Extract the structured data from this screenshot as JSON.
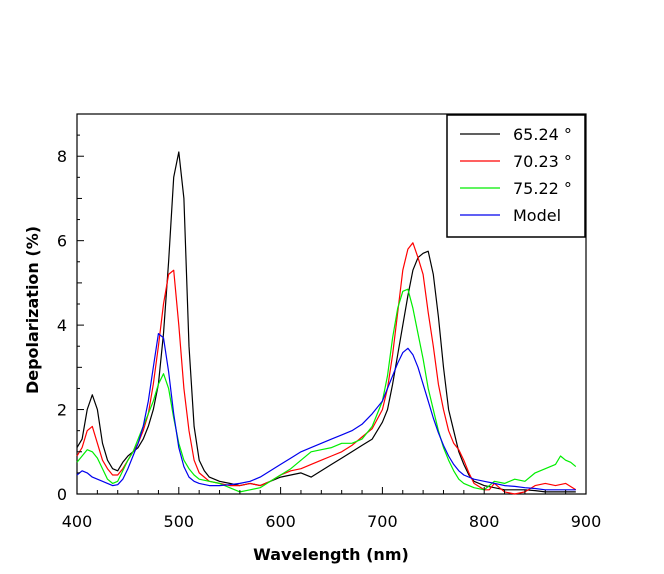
{
  "chart_data": {
    "type": "line",
    "title": "",
    "xlabel": "Wavelength (nm)",
    "ylabel": "Depolarization (%)",
    "xlim": [
      400,
      900
    ],
    "ylim": [
      0,
      9
    ],
    "xticks": [
      400,
      500,
      600,
      700,
      800,
      900
    ],
    "xtick_labels": [
      "400",
      "500",
      "600",
      "700",
      "800",
      "900"
    ],
    "yticks": [
      0,
      2,
      4,
      6,
      8
    ],
    "ytick_labels": [
      "0",
      "2",
      "4",
      "6",
      "8"
    ],
    "grid": false,
    "legend_position": "top-right",
    "series": [
      {
        "name": "65.24 °",
        "color": "#000000",
        "points": [
          [
            400,
            1.1
          ],
          [
            405,
            1.3
          ],
          [
            410,
            2.0
          ],
          [
            415,
            2.35
          ],
          [
            420,
            2.0
          ],
          [
            425,
            1.2
          ],
          [
            430,
            0.8
          ],
          [
            435,
            0.6
          ],
          [
            440,
            0.55
          ],
          [
            445,
            0.75
          ],
          [
            450,
            0.9
          ],
          [
            455,
            1.0
          ],
          [
            460,
            1.1
          ],
          [
            465,
            1.3
          ],
          [
            470,
            1.6
          ],
          [
            475,
            2.0
          ],
          [
            480,
            2.6
          ],
          [
            485,
            3.8
          ],
          [
            490,
            5.5
          ],
          [
            495,
            7.5
          ],
          [
            500,
            8.1
          ],
          [
            505,
            7.0
          ],
          [
            510,
            3.5
          ],
          [
            515,
            1.6
          ],
          [
            520,
            0.8
          ],
          [
            525,
            0.55
          ],
          [
            530,
            0.4
          ],
          [
            540,
            0.3
          ],
          [
            550,
            0.25
          ],
          [
            560,
            0.2
          ],
          [
            570,
            0.25
          ],
          [
            580,
            0.2
          ],
          [
            590,
            0.3
          ],
          [
            600,
            0.4
          ],
          [
            610,
            0.45
          ],
          [
            620,
            0.5
          ],
          [
            630,
            0.4
          ],
          [
            640,
            0.55
          ],
          [
            650,
            0.7
          ],
          [
            660,
            0.85
          ],
          [
            670,
            1.0
          ],
          [
            680,
            1.15
          ],
          [
            690,
            1.3
          ],
          [
            700,
            1.7
          ],
          [
            705,
            2.0
          ],
          [
            710,
            2.6
          ],
          [
            715,
            3.3
          ],
          [
            720,
            4.0
          ],
          [
            725,
            4.7
          ],
          [
            730,
            5.3
          ],
          [
            735,
            5.6
          ],
          [
            740,
            5.7
          ],
          [
            745,
            5.75
          ],
          [
            750,
            5.2
          ],
          [
            755,
            4.2
          ],
          [
            760,
            3.0
          ],
          [
            765,
            2.0
          ],
          [
            770,
            1.5
          ],
          [
            775,
            1.0
          ],
          [
            780,
            0.7
          ],
          [
            785,
            0.45
          ],
          [
            790,
            0.3
          ],
          [
            800,
            0.2
          ],
          [
            810,
            0.15
          ],
          [
            820,
            0.1
          ],
          [
            830,
            0.1
          ],
          [
            840,
            0.1
          ],
          [
            850,
            0.08
          ],
          [
            860,
            0.05
          ],
          [
            870,
            0.05
          ],
          [
            880,
            0.05
          ],
          [
            890,
            0.05
          ]
        ]
      },
      {
        "name": "70.23 °",
        "color": "#ff0000",
        "points": [
          [
            400,
            0.9
          ],
          [
            405,
            1.1
          ],
          [
            410,
            1.5
          ],
          [
            415,
            1.6
          ],
          [
            420,
            1.2
          ],
          [
            425,
            0.8
          ],
          [
            430,
            0.6
          ],
          [
            435,
            0.45
          ],
          [
            440,
            0.45
          ],
          [
            445,
            0.6
          ],
          [
            450,
            0.8
          ],
          [
            455,
            1.0
          ],
          [
            460,
            1.2
          ],
          [
            465,
            1.5
          ],
          [
            470,
            1.9
          ],
          [
            475,
            2.6
          ],
          [
            480,
            3.5
          ],
          [
            485,
            4.5
          ],
          [
            490,
            5.2
          ],
          [
            495,
            5.3
          ],
          [
            500,
            4.0
          ],
          [
            505,
            2.5
          ],
          [
            510,
            1.5
          ],
          [
            515,
            0.8
          ],
          [
            520,
            0.5
          ],
          [
            525,
            0.4
          ],
          [
            530,
            0.3
          ],
          [
            540,
            0.25
          ],
          [
            550,
            0.2
          ],
          [
            560,
            0.2
          ],
          [
            570,
            0.25
          ],
          [
            580,
            0.2
          ],
          [
            590,
            0.3
          ],
          [
            600,
            0.45
          ],
          [
            610,
            0.55
          ],
          [
            620,
            0.6
          ],
          [
            630,
            0.7
          ],
          [
            640,
            0.8
          ],
          [
            650,
            0.9
          ],
          [
            660,
            1.0
          ],
          [
            670,
            1.15
          ],
          [
            680,
            1.35
          ],
          [
            690,
            1.55
          ],
          [
            700,
            2.0
          ],
          [
            705,
            2.5
          ],
          [
            710,
            3.3
          ],
          [
            715,
            4.3
          ],
          [
            720,
            5.3
          ],
          [
            725,
            5.8
          ],
          [
            730,
            5.95
          ],
          [
            735,
            5.6
          ],
          [
            740,
            5.2
          ],
          [
            745,
            4.3
          ],
          [
            750,
            3.5
          ],
          [
            755,
            2.6
          ],
          [
            760,
            2.0
          ],
          [
            765,
            1.5
          ],
          [
            770,
            1.2
          ],
          [
            775,
            1.05
          ],
          [
            780,
            0.8
          ],
          [
            785,
            0.5
          ],
          [
            790,
            0.25
          ],
          [
            800,
            0.1
          ],
          [
            805,
            0.1
          ],
          [
            810,
            0.25
          ],
          [
            815,
            0.15
          ],
          [
            820,
            0.05
          ],
          [
            830,
            0.0
          ],
          [
            840,
            0.05
          ],
          [
            850,
            0.2
          ],
          [
            860,
            0.25
          ],
          [
            870,
            0.2
          ],
          [
            880,
            0.25
          ],
          [
            890,
            0.1
          ]
        ]
      },
      {
        "name": "75.22 °",
        "color": "#00ee00",
        "points": [
          [
            400,
            0.75
          ],
          [
            405,
            0.9
          ],
          [
            410,
            1.05
          ],
          [
            415,
            1.0
          ],
          [
            420,
            0.85
          ],
          [
            425,
            0.6
          ],
          [
            430,
            0.35
          ],
          [
            435,
            0.25
          ],
          [
            440,
            0.3
          ],
          [
            445,
            0.55
          ],
          [
            450,
            0.8
          ],
          [
            455,
            1.0
          ],
          [
            460,
            1.3
          ],
          [
            465,
            1.6
          ],
          [
            470,
            1.9
          ],
          [
            475,
            2.2
          ],
          [
            480,
            2.6
          ],
          [
            485,
            2.85
          ],
          [
            490,
            2.5
          ],
          [
            495,
            1.8
          ],
          [
            500,
            1.2
          ],
          [
            505,
            0.8
          ],
          [
            510,
            0.6
          ],
          [
            515,
            0.45
          ],
          [
            520,
            0.35
          ],
          [
            530,
            0.3
          ],
          [
            540,
            0.25
          ],
          [
            550,
            0.15
          ],
          [
            560,
            0.05
          ],
          [
            570,
            0.1
          ],
          [
            580,
            0.15
          ],
          [
            590,
            0.3
          ],
          [
            600,
            0.45
          ],
          [
            610,
            0.6
          ],
          [
            620,
            0.8
          ],
          [
            630,
            1.0
          ],
          [
            640,
            1.05
          ],
          [
            650,
            1.1
          ],
          [
            660,
            1.2
          ],
          [
            670,
            1.2
          ],
          [
            680,
            1.3
          ],
          [
            690,
            1.6
          ],
          [
            700,
            2.2
          ],
          [
            705,
            2.8
          ],
          [
            710,
            3.7
          ],
          [
            715,
            4.4
          ],
          [
            720,
            4.8
          ],
          [
            725,
            4.85
          ],
          [
            730,
            4.4
          ],
          [
            735,
            3.8
          ],
          [
            740,
            3.2
          ],
          [
            745,
            2.5
          ],
          [
            750,
            2.0
          ],
          [
            755,
            1.5
          ],
          [
            760,
            1.1
          ],
          [
            765,
            0.8
          ],
          [
            770,
            0.55
          ],
          [
            775,
            0.35
          ],
          [
            780,
            0.25
          ],
          [
            790,
            0.15
          ],
          [
            800,
            0.1
          ],
          [
            810,
            0.3
          ],
          [
            820,
            0.25
          ],
          [
            830,
            0.35
          ],
          [
            840,
            0.3
          ],
          [
            850,
            0.5
          ],
          [
            860,
            0.6
          ],
          [
            870,
            0.7
          ],
          [
            875,
            0.9
          ],
          [
            880,
            0.8
          ],
          [
            885,
            0.75
          ],
          [
            890,
            0.65
          ]
        ]
      },
      {
        "name": "Model",
        "color": "#0000ee",
        "points": [
          [
            400,
            0.45
          ],
          [
            405,
            0.55
          ],
          [
            410,
            0.5
          ],
          [
            415,
            0.4
          ],
          [
            420,
            0.35
          ],
          [
            425,
            0.3
          ],
          [
            430,
            0.25
          ],
          [
            435,
            0.2
          ],
          [
            440,
            0.22
          ],
          [
            445,
            0.35
          ],
          [
            450,
            0.6
          ],
          [
            455,
            0.9
          ],
          [
            460,
            1.2
          ],
          [
            465,
            1.6
          ],
          [
            470,
            2.2
          ],
          [
            475,
            3.0
          ],
          [
            480,
            3.8
          ],
          [
            485,
            3.7
          ],
          [
            490,
            2.9
          ],
          [
            495,
            1.9
          ],
          [
            500,
            1.1
          ],
          [
            505,
            0.65
          ],
          [
            510,
            0.4
          ],
          [
            515,
            0.3
          ],
          [
            520,
            0.25
          ],
          [
            530,
            0.2
          ],
          [
            540,
            0.2
          ],
          [
            550,
            0.22
          ],
          [
            560,
            0.25
          ],
          [
            570,
            0.3
          ],
          [
            580,
            0.4
          ],
          [
            590,
            0.55
          ],
          [
            600,
            0.7
          ],
          [
            610,
            0.85
          ],
          [
            620,
            1.0
          ],
          [
            630,
            1.1
          ],
          [
            640,
            1.2
          ],
          [
            650,
            1.3
          ],
          [
            660,
            1.4
          ],
          [
            670,
            1.5
          ],
          [
            680,
            1.65
          ],
          [
            690,
            1.9
          ],
          [
            700,
            2.2
          ],
          [
            705,
            2.5
          ],
          [
            710,
            2.8
          ],
          [
            715,
            3.1
          ],
          [
            720,
            3.35
          ],
          [
            725,
            3.45
          ],
          [
            730,
            3.3
          ],
          [
            735,
            3.0
          ],
          [
            740,
            2.6
          ],
          [
            745,
            2.2
          ],
          [
            750,
            1.8
          ],
          [
            755,
            1.45
          ],
          [
            760,
            1.15
          ],
          [
            765,
            0.9
          ],
          [
            770,
            0.7
          ],
          [
            775,
            0.55
          ],
          [
            780,
            0.45
          ],
          [
            790,
            0.35
          ],
          [
            800,
            0.3
          ],
          [
            810,
            0.25
          ],
          [
            820,
            0.2
          ],
          [
            830,
            0.18
          ],
          [
            840,
            0.15
          ],
          [
            850,
            0.13
          ],
          [
            860,
            0.1
          ],
          [
            870,
            0.1
          ],
          [
            880,
            0.1
          ],
          [
            890,
            0.1
          ]
        ]
      }
    ]
  }
}
